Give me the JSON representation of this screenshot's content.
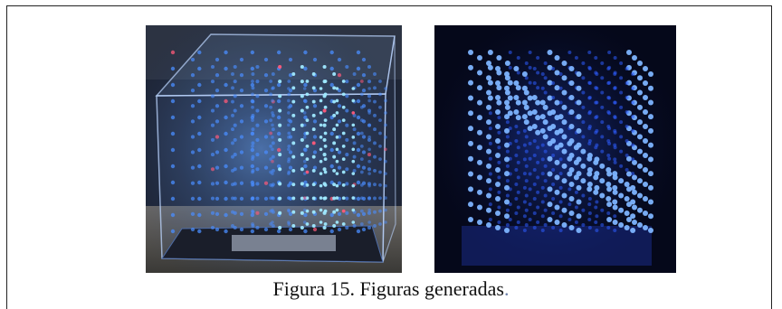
{
  "figure": {
    "caption": "Figura 15. Figuras generadas",
    "caption_end": "."
  },
  "images": {
    "left": "led-cube-photo-in-acrylic-case",
    "right": "led-cube-photo-dark-background"
  },
  "colors": {
    "led_blue": "#4a8dff",
    "led_cyan": "#9fe9ff",
    "led_red": "#ff5a7a",
    "dark_bg": "#05081a"
  }
}
